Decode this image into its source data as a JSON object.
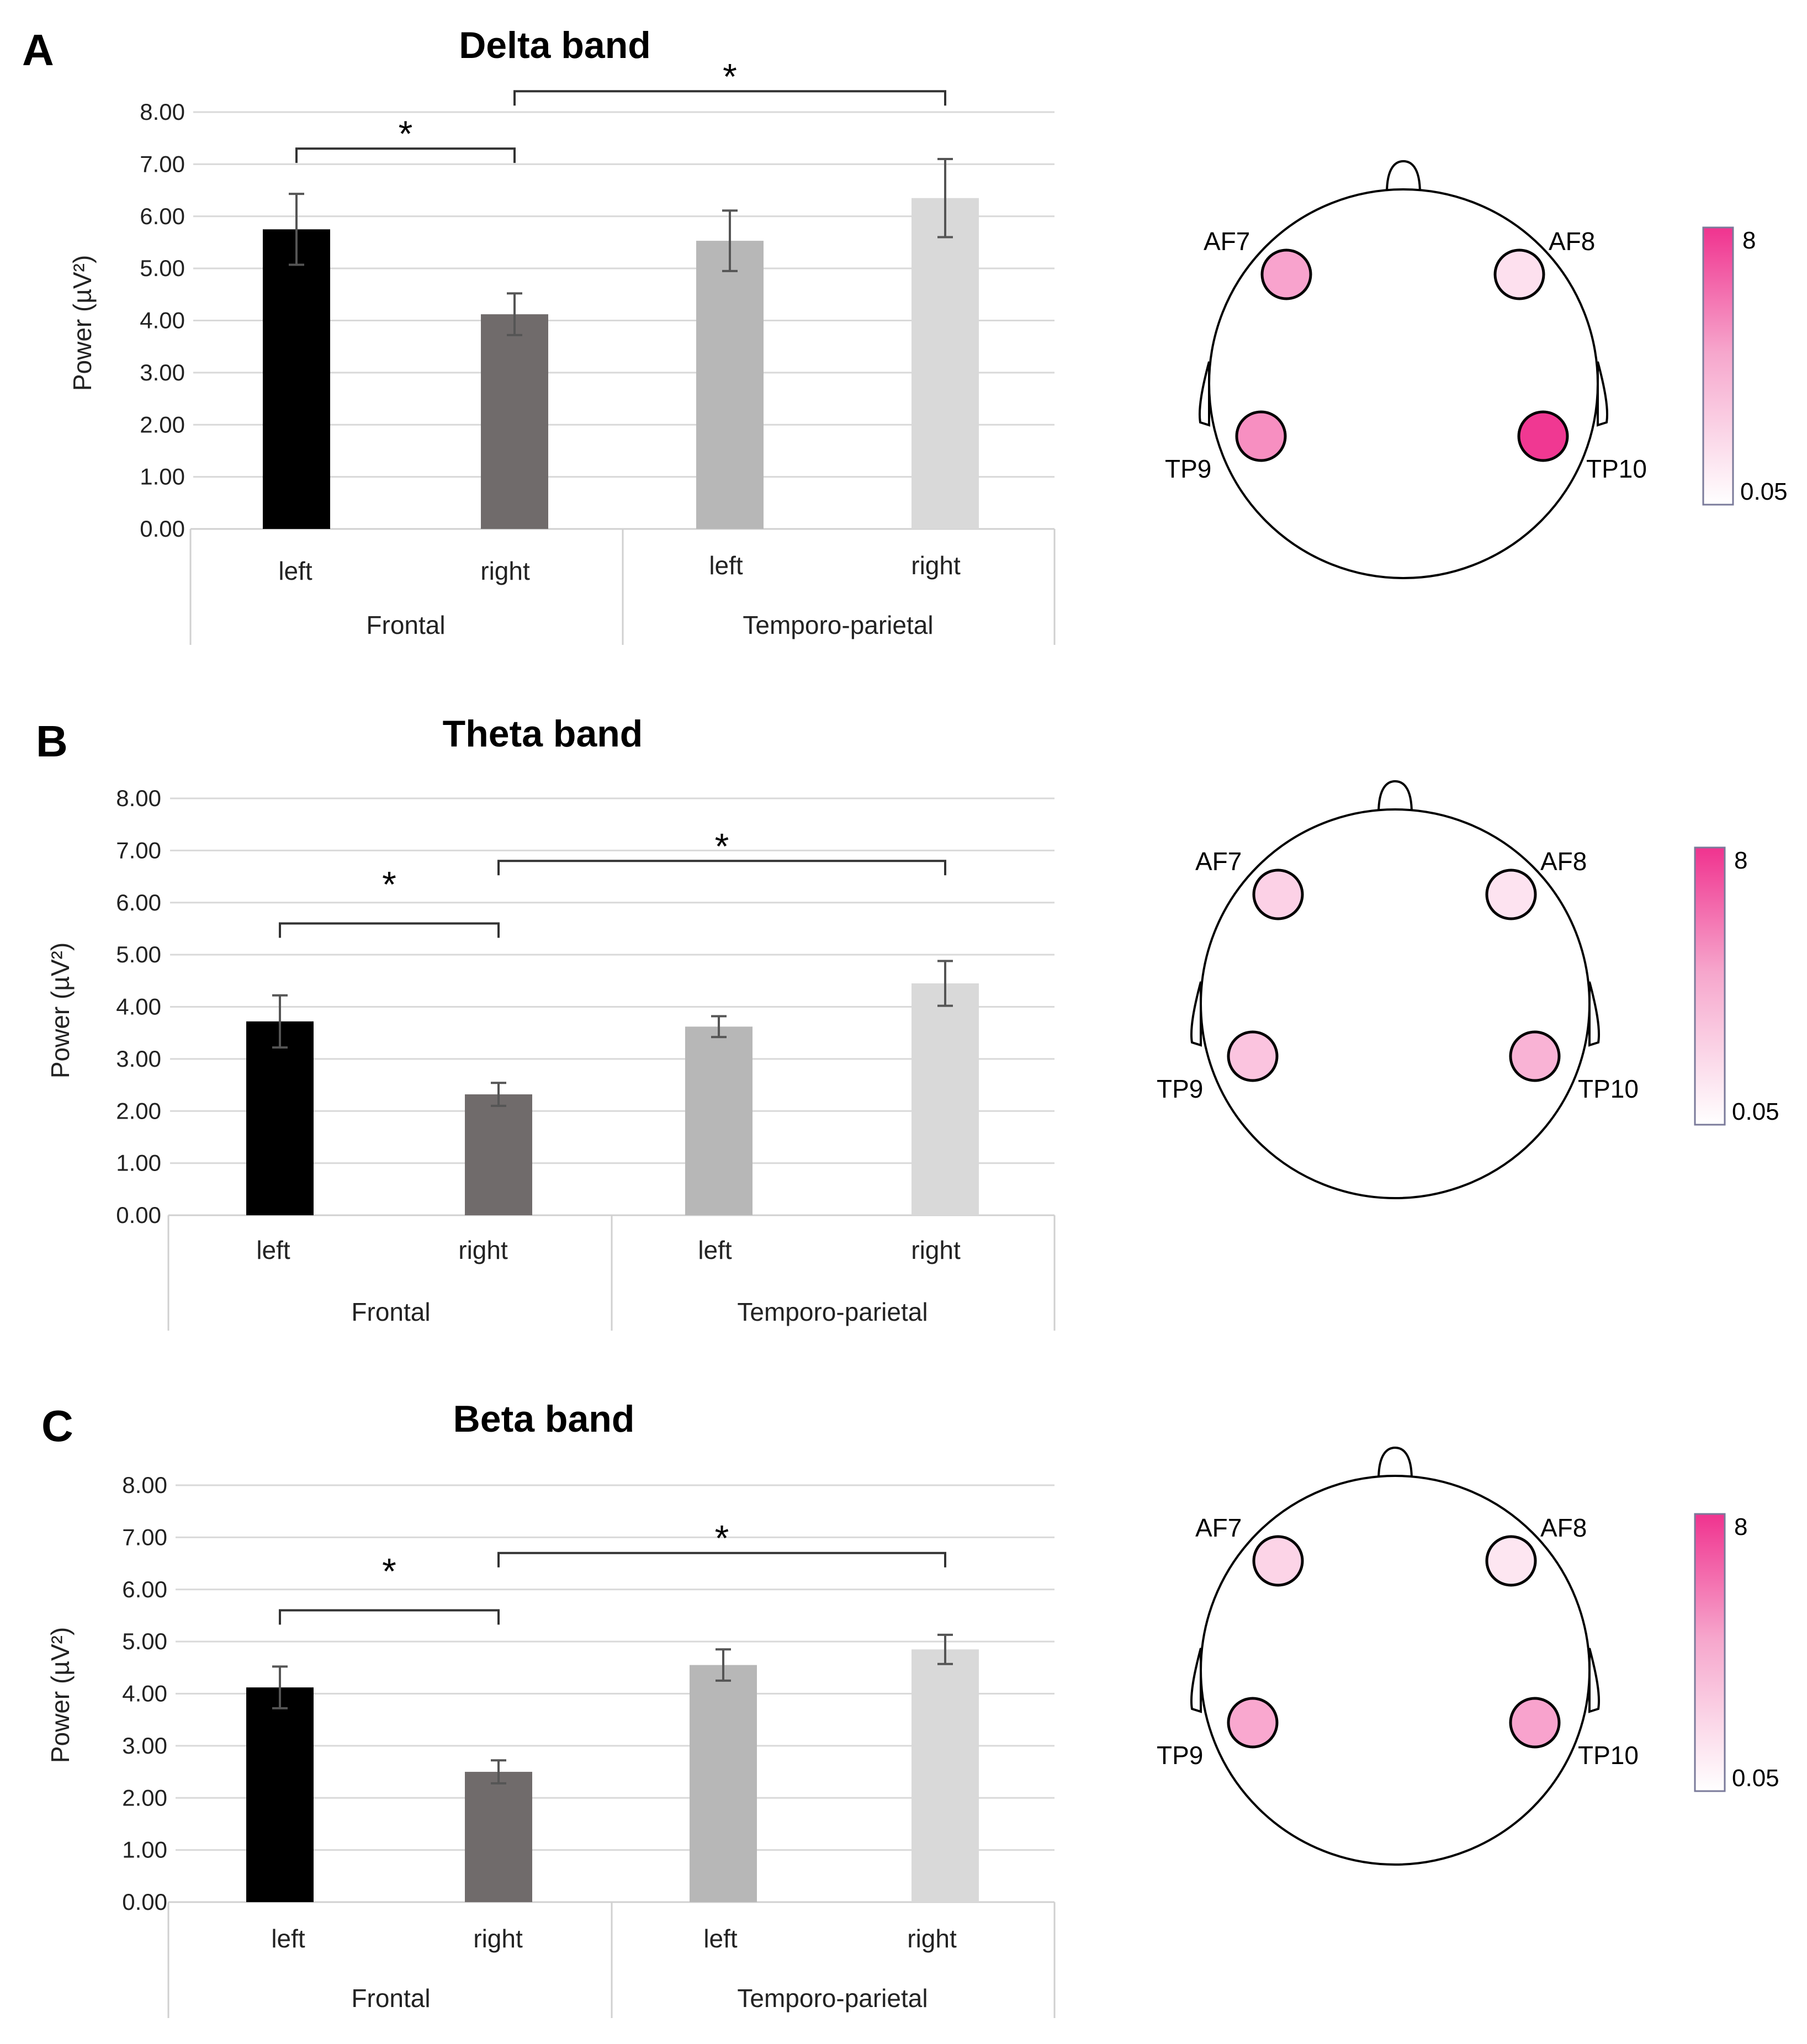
{
  "colors": {
    "frontal_left": "#000000",
    "frontal_right": "#706b6b",
    "tp_left": "#b7b7b7",
    "tp_right": "#d9d9d9",
    "grid": "#d9d9d9",
    "errorbar": "#555555",
    "scale_high": "#f0338f",
    "scale_low": "#ffffff"
  },
  "chart_data": [
    {
      "type": "bar",
      "panel": "A",
      "title": "Delta band",
      "ylabel": "Power (µV²)",
      "ylim": [
        0,
        8
      ],
      "yticks": [
        "0.00",
        "1.00",
        "2.00",
        "3.00",
        "4.00",
        "5.00",
        "6.00",
        "7.00",
        "8.00"
      ],
      "categories": [
        "left",
        "right",
        "left",
        "right"
      ],
      "groups": [
        "Frontal",
        "Temporo-parietal"
      ],
      "values": [
        5.75,
        4.12,
        5.53,
        6.35
      ],
      "errors": [
        0.68,
        0.4,
        0.58,
        0.75
      ],
      "significance": [
        {
          "from": 0,
          "to": 1,
          "label": "*",
          "y": 7.3
        },
        {
          "from": 1,
          "to": 3,
          "label": "*",
          "y": 8.4
        }
      ],
      "topomap": {
        "electrodes": [
          {
            "label": "AF7",
            "value": 3.6
          },
          {
            "label": "AF8",
            "value": 1.2
          },
          {
            "label": "TP9",
            "value": 4.4
          },
          {
            "label": "TP10",
            "value": 7.8
          }
        ],
        "scale_max": "8",
        "scale_min": "0.05"
      }
    },
    {
      "type": "bar",
      "panel": "B",
      "title": "Theta band",
      "ylabel": "Power (µV²)",
      "ylim": [
        0,
        8
      ],
      "yticks": [
        "0.00",
        "1.00",
        "2.00",
        "3.00",
        "4.00",
        "5.00",
        "6.00",
        "7.00",
        "8.00"
      ],
      "categories": [
        "left",
        "right",
        "left",
        "right"
      ],
      "groups": [
        "Frontal",
        "Temporo-parietal"
      ],
      "values": [
        3.72,
        2.32,
        3.62,
        4.45
      ],
      "errors": [
        0.5,
        0.22,
        0.2,
        0.43
      ],
      "significance": [
        {
          "from": 0,
          "to": 1,
          "label": "*",
          "y": 5.6
        },
        {
          "from": 1,
          "to": 3,
          "label": "*",
          "y": 6.8
        }
      ],
      "topomap": {
        "electrodes": [
          {
            "label": "AF7",
            "value": 1.8
          },
          {
            "label": "AF8",
            "value": 1.1
          },
          {
            "label": "TP9",
            "value": 2.3
          },
          {
            "label": "TP10",
            "value": 3.0
          }
        ],
        "scale_max": "8",
        "scale_min": "0.05"
      }
    },
    {
      "type": "bar",
      "panel": "C",
      "title": "Beta band",
      "ylabel": "Power (µV²)",
      "ylim": [
        0,
        8
      ],
      "yticks": [
        "0.00",
        "1.00",
        "2.00",
        "3.00",
        "4.00",
        "5.00",
        "6.00",
        "7.00",
        "8.00"
      ],
      "categories": [
        "left",
        "right",
        "left",
        "right"
      ],
      "groups": [
        "Frontal",
        "Temporo-parietal"
      ],
      "values": [
        4.12,
        2.5,
        4.55,
        4.85
      ],
      "errors": [
        0.4,
        0.22,
        0.3,
        0.28
      ],
      "significance": [
        {
          "from": 0,
          "to": 1,
          "label": "*",
          "y": 5.6
        },
        {
          "from": 1,
          "to": 3,
          "label": "*",
          "y": 6.7
        }
      ],
      "topomap": {
        "electrodes": [
          {
            "label": "AF7",
            "value": 1.7
          },
          {
            "label": "AF8",
            "value": 1.0
          },
          {
            "label": "TP9",
            "value": 3.4
          },
          {
            "label": "TP10",
            "value": 3.6
          }
        ],
        "scale_max": "8",
        "scale_min": "0.05"
      }
    }
  ]
}
